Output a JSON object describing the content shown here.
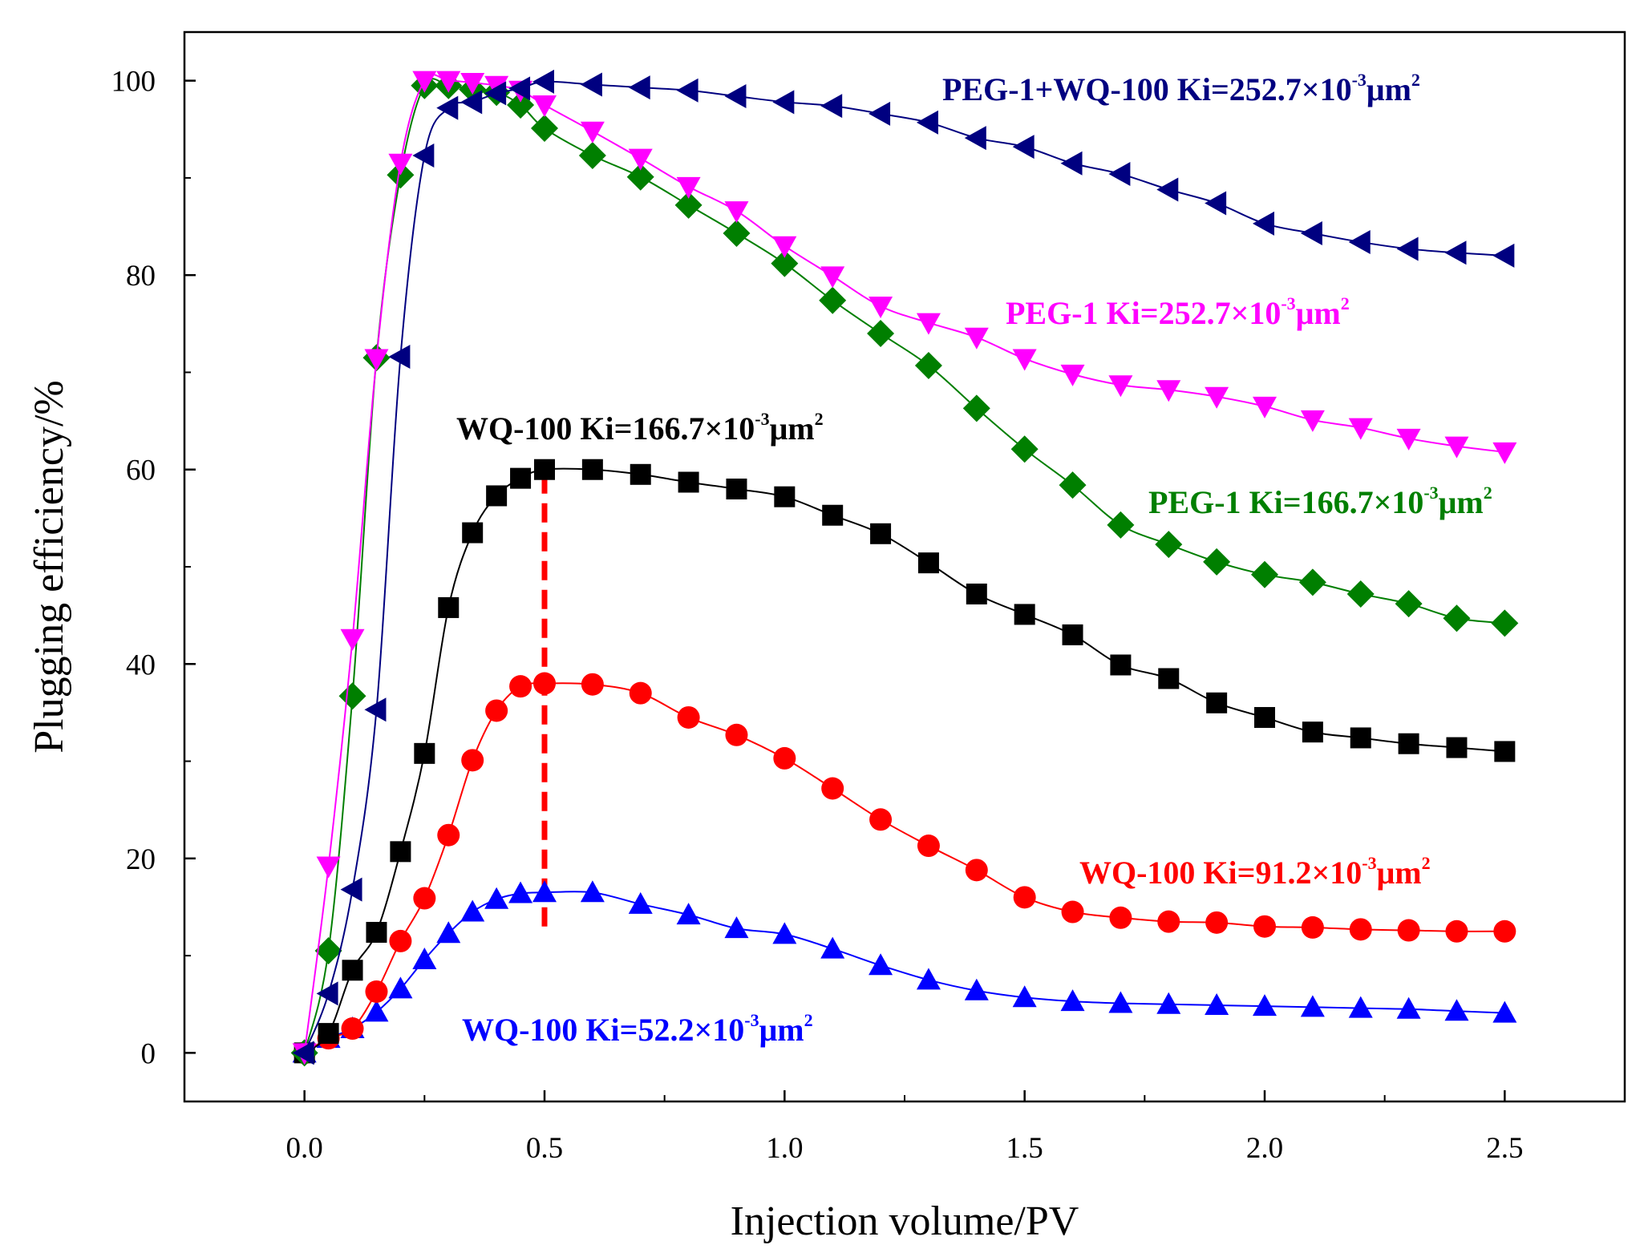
{
  "chart_data": {
    "type": "line",
    "title": "",
    "xlabel": "Injection volume/PV",
    "ylabel": "Plugging efficiency/%",
    "xlim": [
      -0.25,
      2.75
    ],
    "ylim": [
      -5,
      105
    ],
    "xticks": [
      "0.0",
      "0.5",
      "1.0",
      "1.5",
      "2.0",
      "2.5"
    ],
    "yticks": [
      "0",
      "20",
      "40",
      "60",
      "80",
      "100"
    ],
    "grid": false,
    "x": [
      0,
      0.05,
      0.1,
      0.15,
      0.2,
      0.25,
      0.3,
      0.35,
      0.4,
      0.45,
      0.5,
      0.6,
      0.7,
      0.8,
      0.9,
      1.0,
      1.1,
      1.2,
      1.3,
      1.4,
      1.5,
      1.6,
      1.7,
      1.8,
      1.9,
      2.0,
      2.1,
      2.2,
      2.3,
      2.4,
      2.5
    ],
    "series": [
      {
        "name": "PEG-1+WQ-100 Ki=252.7×10-3μm2",
        "label": {
          "pre": "PEG-1+WQ-100 Ki=252.7×10",
          "exp": "-3",
          "unit": "μm",
          "uexp": "2"
        },
        "color": "#000080",
        "marker": "triangle-left",
        "values": [
          0,
          6.1,
          16.8,
          35.3,
          71.6,
          92.3,
          97.2,
          97.8,
          98.7,
          99.2,
          99.9,
          99.6,
          99.3,
          99.0,
          98.4,
          97.8,
          97.4,
          96.6,
          95.7,
          94.1,
          93.2,
          91.5,
          90.4,
          88.8,
          87.4,
          85.3,
          84.3,
          83.4,
          82.7,
          82.3,
          82.0
        ]
      },
      {
        "name": "PEG-1 Ki=252.7×10-3μm2",
        "label": {
          "pre": "PEG-1 Ki=252.7×10",
          "exp": "-3",
          "unit": "μm",
          "uexp": "2"
        },
        "color": "#ff00ff",
        "marker": "triangle-down",
        "values": [
          0,
          19.2,
          42.6,
          71.4,
          91.5,
          100,
          100,
          99.8,
          99.5,
          99.0,
          97.5,
          94.8,
          92.0,
          89.1,
          86.6,
          83.0,
          79.9,
          76.8,
          75.1,
          73.6,
          71.4,
          69.8,
          68.7,
          68.2,
          67.5,
          66.5,
          65.1,
          64.3,
          63.2,
          62.4,
          61.8
        ]
      },
      {
        "name": "PEG-1 Ki=166.7×10-3μm2",
        "label": {
          "pre": "PEG-1 Ki=166.7×10",
          "exp": "-3",
          "unit": "μm",
          "uexp": "2"
        },
        "color": "#007f00",
        "marker": "diamond",
        "values": [
          0,
          10.5,
          36.7,
          71.5,
          90.3,
          99.5,
          99.5,
          99.1,
          98.8,
          97.5,
          95.1,
          92.3,
          90.1,
          87.2,
          84.3,
          81.2,
          77.4,
          74.0,
          70.7,
          66.3,
          62.1,
          58.4,
          54.3,
          52.3,
          50.5,
          49.2,
          48.4,
          47.2,
          46.2,
          44.7,
          44.2
        ]
      },
      {
        "name": "WQ-100 Ki=166.7×10-3μm2",
        "label": {
          "pre": "WQ-100 Ki=166.7×10",
          "exp": "-3",
          "unit": "μm",
          "uexp": "2"
        },
        "color": "#000000",
        "marker": "square",
        "values": [
          0,
          2.0,
          8.5,
          12.4,
          20.7,
          30.8,
          45.8,
          53.5,
          57.3,
          59.1,
          60.0,
          60.0,
          59.5,
          58.7,
          58.0,
          57.2,
          55.3,
          53.4,
          50.4,
          47.2,
          45.1,
          43.0,
          39.9,
          38.5,
          36.0,
          34.5,
          33.0,
          32.4,
          31.8,
          31.4,
          31.0
        ]
      },
      {
        "name": "WQ-100 Ki=91.2×10-3μm2",
        "label": {
          "pre": "WQ-100 Ki=91.2×10",
          "exp": "-3",
          "unit": "μm",
          "uexp": "2"
        },
        "color": "#ff0000",
        "marker": "circle",
        "values": [
          0,
          1.5,
          2.5,
          6.3,
          11.5,
          15.9,
          22.4,
          30.1,
          35.2,
          37.7,
          38.0,
          37.9,
          37.0,
          34.5,
          32.7,
          30.3,
          27.2,
          24.0,
          21.3,
          18.8,
          16.0,
          14.5,
          13.9,
          13.5,
          13.4,
          13.0,
          12.9,
          12.7,
          12.6,
          12.5,
          12.5
        ]
      },
      {
        "name": "WQ-100 Ki=52.2×10-3μm2",
        "label": {
          "pre": "WQ-100 Ki=52.2×10",
          "exp": "-3",
          "unit": "μm",
          "uexp": "2"
        },
        "color": "#0000ff",
        "marker": "triangle-up",
        "values": [
          0,
          1.5,
          2.5,
          4.2,
          6.6,
          9.6,
          12.3,
          14.5,
          15.8,
          16.4,
          16.5,
          16.5,
          15.3,
          14.2,
          12.8,
          12.2,
          10.7,
          9.0,
          7.5,
          6.4,
          5.7,
          5.3,
          5.1,
          5.0,
          4.9,
          4.8,
          4.7,
          4.6,
          4.5,
          4.3,
          4.1
        ]
      }
    ],
    "annotations": [
      {
        "type": "dashed-vertical-line",
        "x": 0.5,
        "y_from": 13,
        "y_to": 60,
        "color": "#ff0000"
      }
    ]
  }
}
